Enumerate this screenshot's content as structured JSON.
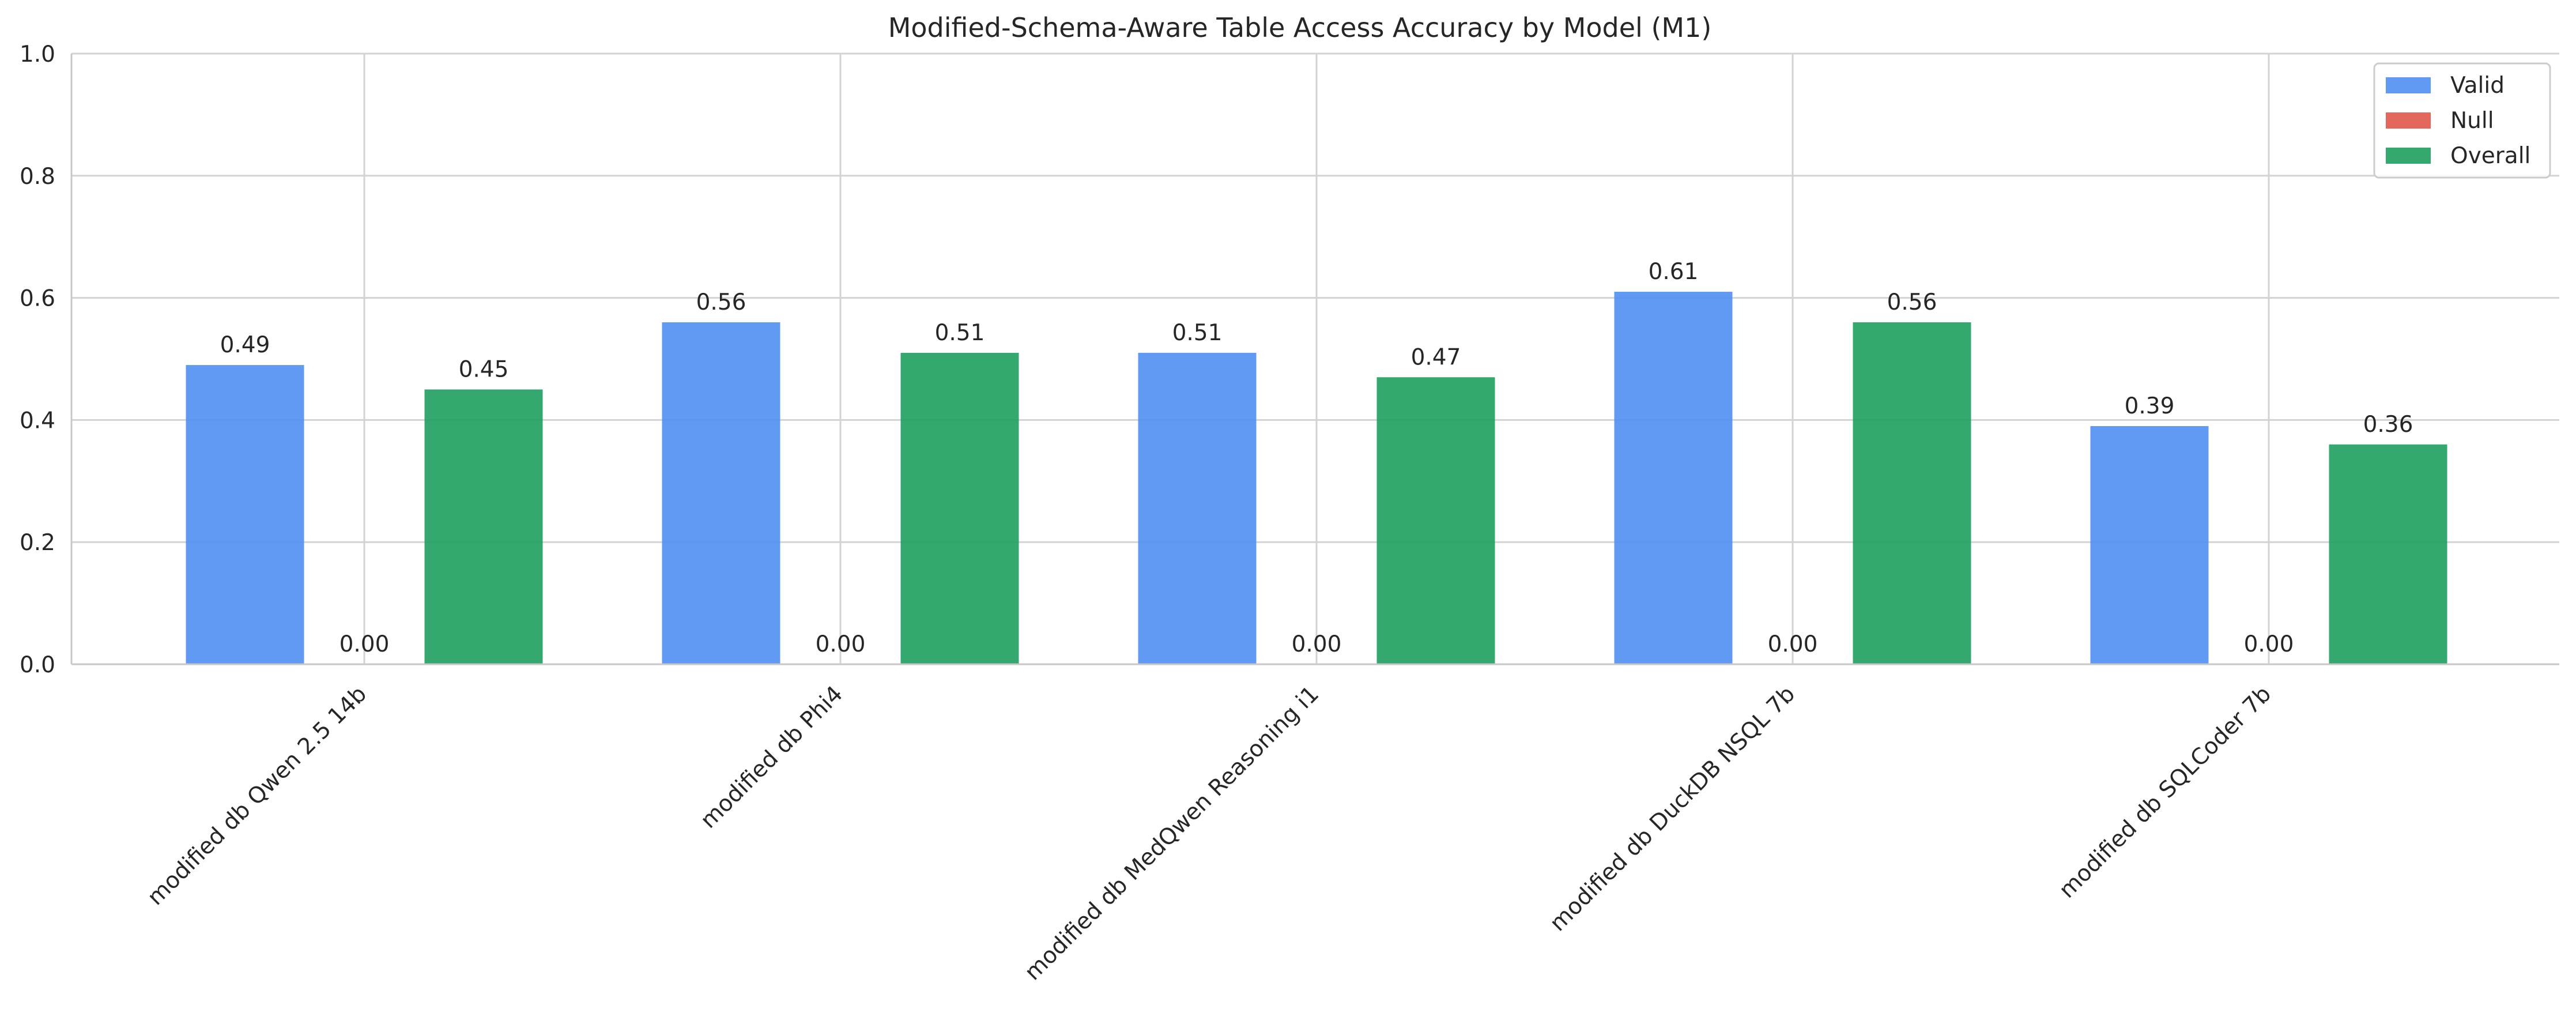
{
  "chart_data": {
    "type": "bar",
    "title": "Modified-Schema-Aware Table Access Accuracy by Model (M1)",
    "xlabel": "",
    "ylabel": "",
    "ylim": [
      0,
      1.0
    ],
    "yticks": [
      "0.0",
      "0.2",
      "0.4",
      "0.6",
      "0.8",
      "1.0"
    ],
    "grid": true,
    "legend_position": "top-right",
    "categories": [
      "modified db Qwen 2.5 14b",
      "modified db Phi4",
      "modified db MedQwen Reasoning i1",
      "modified db DuckDB NSQL 7b",
      "modified db SQLCoder 7b"
    ],
    "series": [
      {
        "name": "Valid",
        "color": "#4f8ff2",
        "values": [
          0.49,
          0.56,
          0.51,
          0.61,
          0.39
        ],
        "labels": [
          "0.49",
          "0.56",
          "0.51",
          "0.61",
          "0.39"
        ]
      },
      {
        "name": "Null",
        "color": "#e0574b",
        "values": [
          0.0,
          0.0,
          0.0,
          0.0,
          0.0
        ],
        "labels": [
          "0.00",
          "0.00",
          "0.00",
          "0.00",
          "0.00"
        ]
      },
      {
        "name": "Overall",
        "color": "#1e9e5e",
        "values": [
          0.45,
          0.51,
          0.47,
          0.56,
          0.36
        ],
        "labels": [
          "0.45",
          "0.51",
          "0.47",
          "0.56",
          "0.36"
        ]
      }
    ]
  }
}
